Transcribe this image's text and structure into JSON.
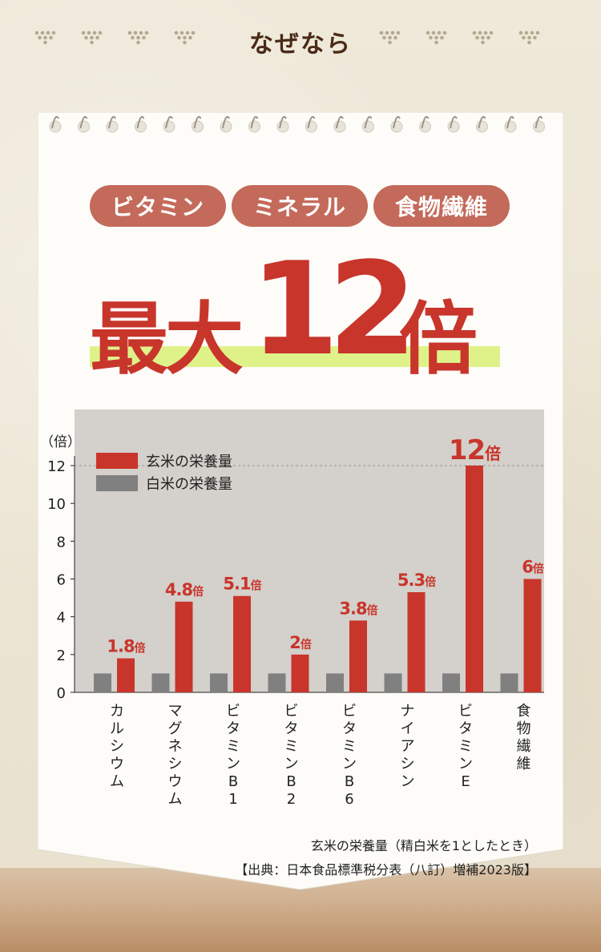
{
  "header": {
    "title": "なぜなら"
  },
  "pills": [
    "ビタミン",
    "ミネラル",
    "食物繊維"
  ],
  "headline": {
    "prefix": "最大",
    "number": "12",
    "suffix": "倍"
  },
  "colors": {
    "brown_rice": "#c8352b",
    "white_rice": "#808080",
    "pill": "#c46a5a",
    "plot_bg": "#d4d0cb",
    "highlight": "#dff28a"
  },
  "chart_data": {
    "type": "bar",
    "ylabel": "（倍）",
    "ylim": [
      0,
      12
    ],
    "yticks": [
      0,
      2,
      4,
      6,
      8,
      10,
      12
    ],
    "categories": [
      "カルシウム",
      "マグネシウム",
      "ビタミンB1",
      "ビタミンB2",
      "ビタミンB6",
      "ナイアシン",
      "ビタミンE",
      "食物繊維"
    ],
    "series": [
      {
        "name": "白米の栄養量",
        "values": [
          1,
          1,
          1,
          1,
          1,
          1,
          1,
          1
        ]
      },
      {
        "name": "玄米の栄養量",
        "values": [
          1.8,
          4.8,
          5.1,
          2,
          3.8,
          5.3,
          12,
          6
        ]
      }
    ],
    "data_labels": [
      "1.8",
      "4.8",
      "5.1",
      "2",
      "3.8",
      "5.3",
      "12",
      "6"
    ],
    "label_unit": "倍",
    "legend_position": "top-left",
    "reference_line": 12
  },
  "footnotes": [
    "玄米の栄養量（精白米を1としたとき）",
    "【出典：日本食品標準税分表（八訂）増補2023版】"
  ]
}
